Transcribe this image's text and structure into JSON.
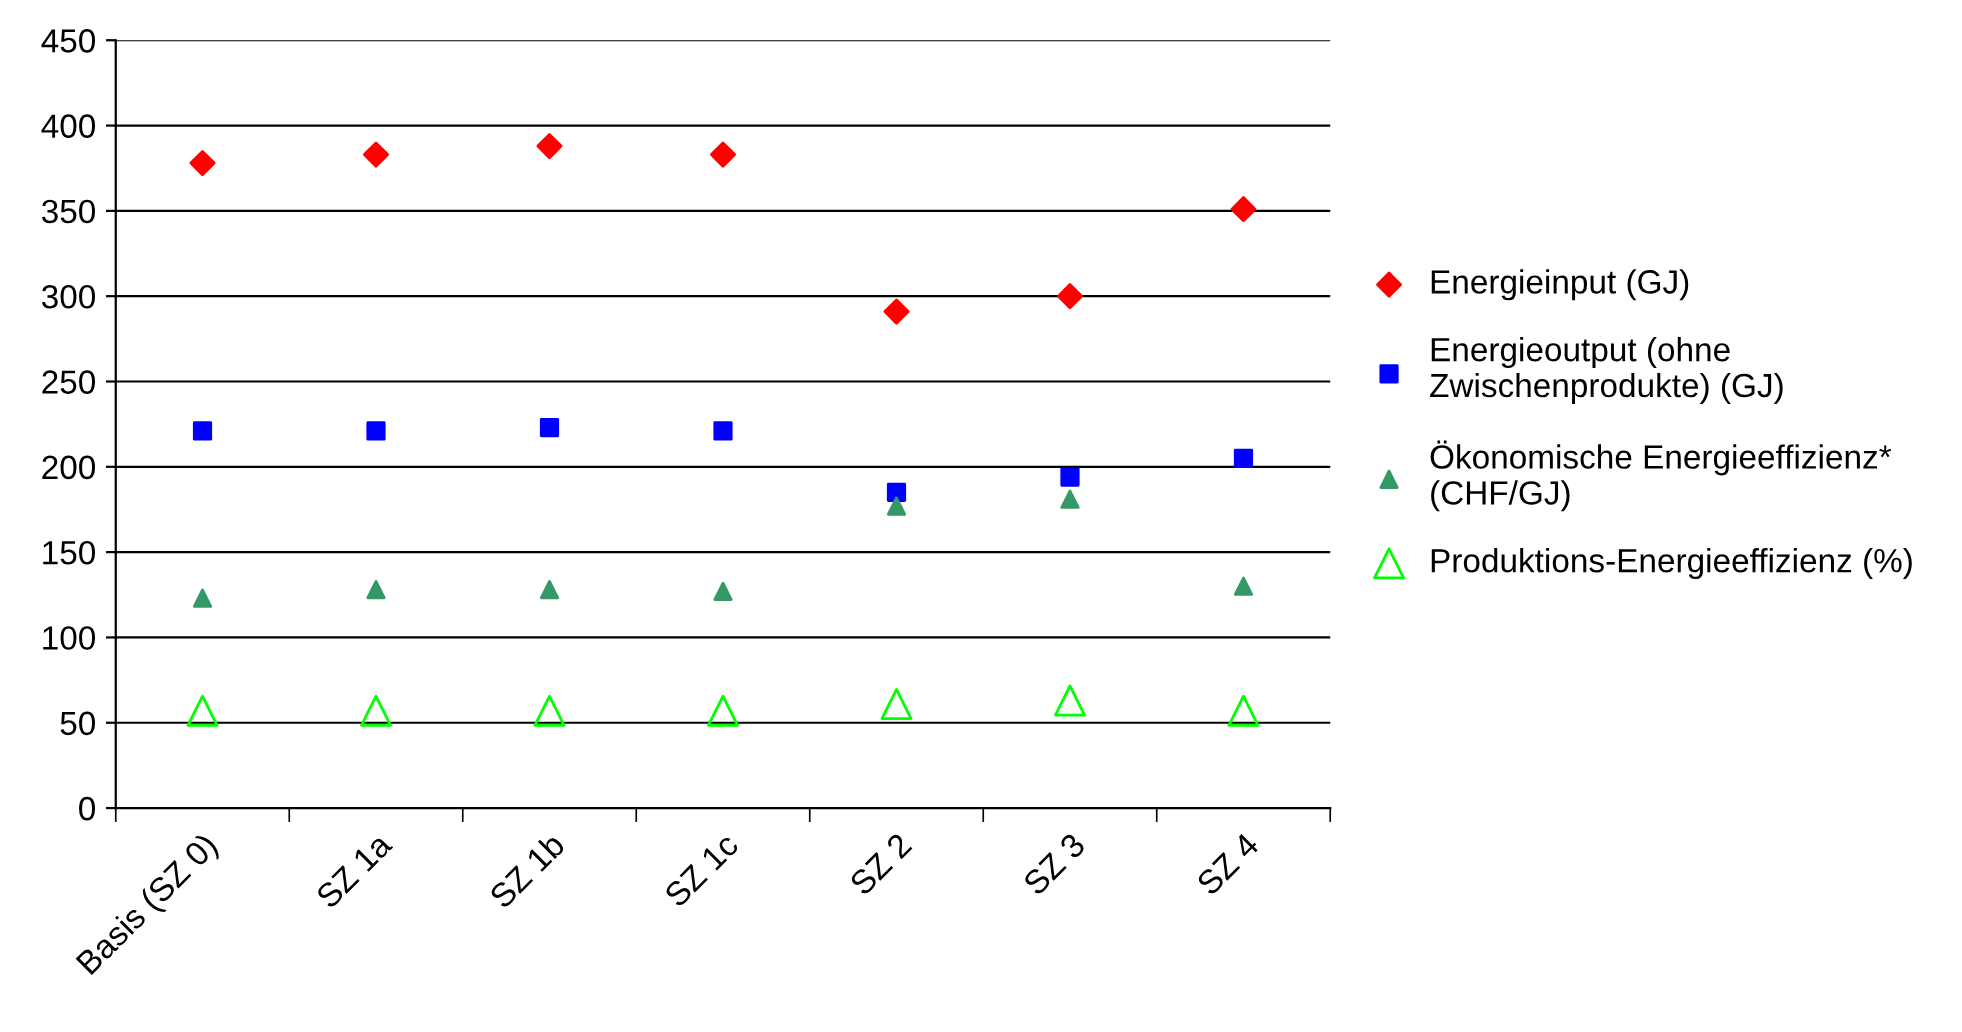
{
  "chart_data": {
    "type": "scatter",
    "categories": [
      "Basis (SZ 0)",
      "SZ 1a",
      "SZ 1b",
      "SZ 1c",
      "SZ 2",
      "SZ 3",
      "SZ 4"
    ],
    "series": [
      {
        "name": "Energieinput (GJ)",
        "color": "#ff0000",
        "marker": "diamond",
        "values": [
          378,
          383,
          388,
          383,
          291,
          300,
          351
        ]
      },
      {
        "name": "Energieoutput (ohne\nZwischenprodukte) (GJ)",
        "color": "#0000ff",
        "marker": "square",
        "values": [
          221,
          221,
          223,
          221,
          185,
          194,
          205
        ]
      },
      {
        "name": "Ökonomische Energieeffizienz*\n(CHF/GJ)",
        "color": "#339966",
        "marker": "triangle",
        "values": [
          123,
          128,
          128,
          127,
          177,
          181,
          130
        ]
      },
      {
        "name": "Produktions-Energieeffizienz (%)",
        "color": "#00ff00",
        "marker": "triangle-open",
        "values": [
          57,
          57,
          57,
          57,
          61,
          63,
          57
        ]
      }
    ],
    "ylim": [
      0,
      450
    ],
    "yticks": [
      0,
      50,
      100,
      150,
      200,
      250,
      300,
      350,
      400,
      450
    ],
    "grid": "y",
    "legend": "right"
  }
}
